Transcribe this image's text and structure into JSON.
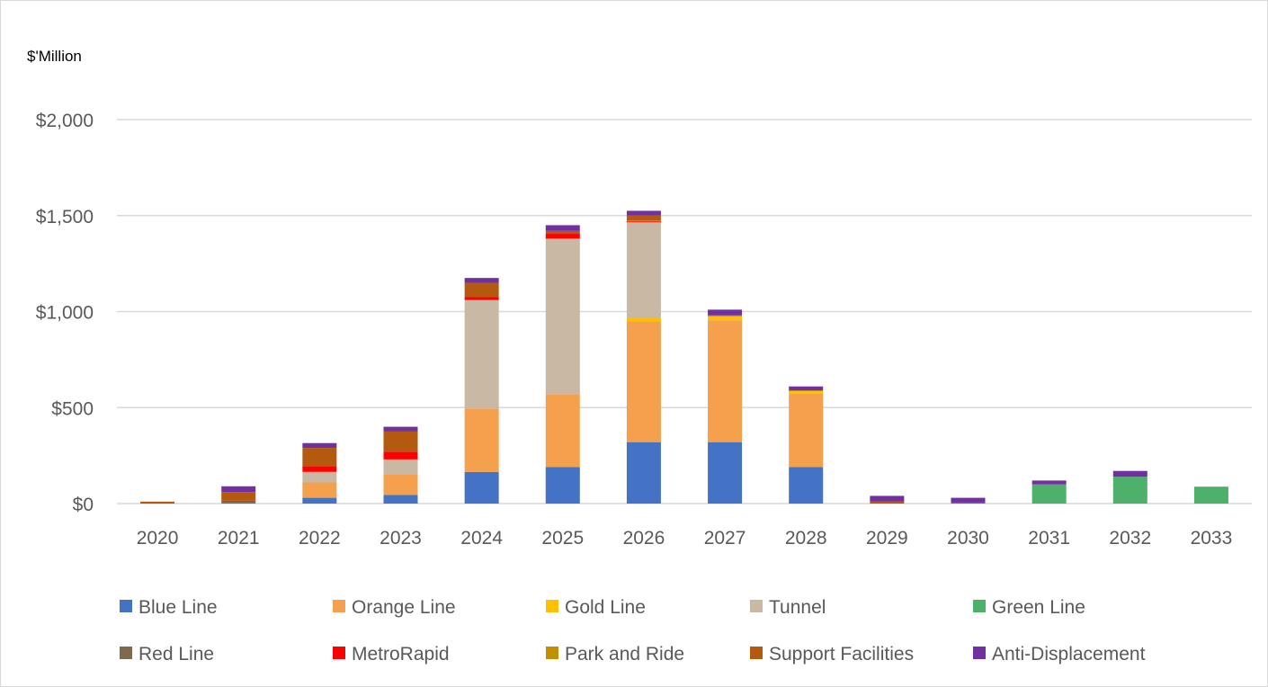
{
  "chart_data": {
    "type": "bar",
    "stacked": true,
    "unit_label": "$'Million",
    "categories": [
      "2020",
      "2021",
      "2022",
      "2023",
      "2024",
      "2025",
      "2026",
      "2027",
      "2028",
      "2029",
      "2030",
      "2031",
      "2032",
      "2033"
    ],
    "y_ticks": [
      "$0",
      "$500",
      "$1,000",
      "$1,500",
      "$2,000"
    ],
    "y_tick_values": [
      0,
      500,
      1000,
      1500,
      2000
    ],
    "ylim": [
      0,
      2000
    ],
    "grid": true,
    "legend_placement": "bottom",
    "series": [
      {
        "name": "Blue Line",
        "color": "#4472C4",
        "values": [
          0,
          5,
          30,
          45,
          165,
          190,
          320,
          320,
          190,
          0,
          5,
          0,
          0,
          0
        ]
      },
      {
        "name": "Orange Line",
        "color": "#F4A04C",
        "values": [
          0,
          0,
          80,
          105,
          330,
          380,
          630,
          635,
          385,
          0,
          0,
          0,
          0,
          0
        ]
      },
      {
        "name": "Gold Line",
        "color": "#FFC000",
        "values": [
          0,
          0,
          0,
          0,
          0,
          0,
          15,
          20,
          10,
          0,
          0,
          0,
          0,
          0
        ]
      },
      {
        "name": "Tunnel",
        "color": "#C8B8A4",
        "values": [
          0,
          0,
          55,
          80,
          565,
          810,
          500,
          0,
          0,
          0,
          0,
          0,
          0,
          0
        ]
      },
      {
        "name": "Green Line",
        "color": "#4DB06B",
        "values": [
          0,
          0,
          0,
          0,
          0,
          0,
          0,
          0,
          0,
          0,
          0,
          100,
          140,
          88
        ]
      },
      {
        "name": "Red Line",
        "color": "#7F6A4F",
        "values": [
          0,
          5,
          0,
          0,
          0,
          0,
          0,
          0,
          0,
          0,
          0,
          0,
          0,
          0
        ]
      },
      {
        "name": "MetroRapid",
        "color": "#FF0000",
        "values": [
          0,
          5,
          30,
          40,
          15,
          25,
          5,
          0,
          0,
          0,
          0,
          0,
          0,
          0
        ]
      },
      {
        "name": "Park and Ride",
        "color": "#BF9000",
        "values": [
          0,
          0,
          0,
          0,
          0,
          0,
          5,
          5,
          5,
          0,
          0,
          0,
          0,
          0
        ]
      },
      {
        "name": "Support Facilities",
        "color": "#B35A0E",
        "values": [
          10,
          45,
          95,
          105,
          75,
          15,
          25,
          0,
          0,
          10,
          0,
          0,
          0,
          0
        ]
      },
      {
        "name": "Anti-Displacement",
        "color": "#7030A0",
        "values": [
          0,
          30,
          25,
          25,
          25,
          30,
          25,
          30,
          20,
          30,
          25,
          20,
          30,
          0
        ]
      }
    ]
  }
}
